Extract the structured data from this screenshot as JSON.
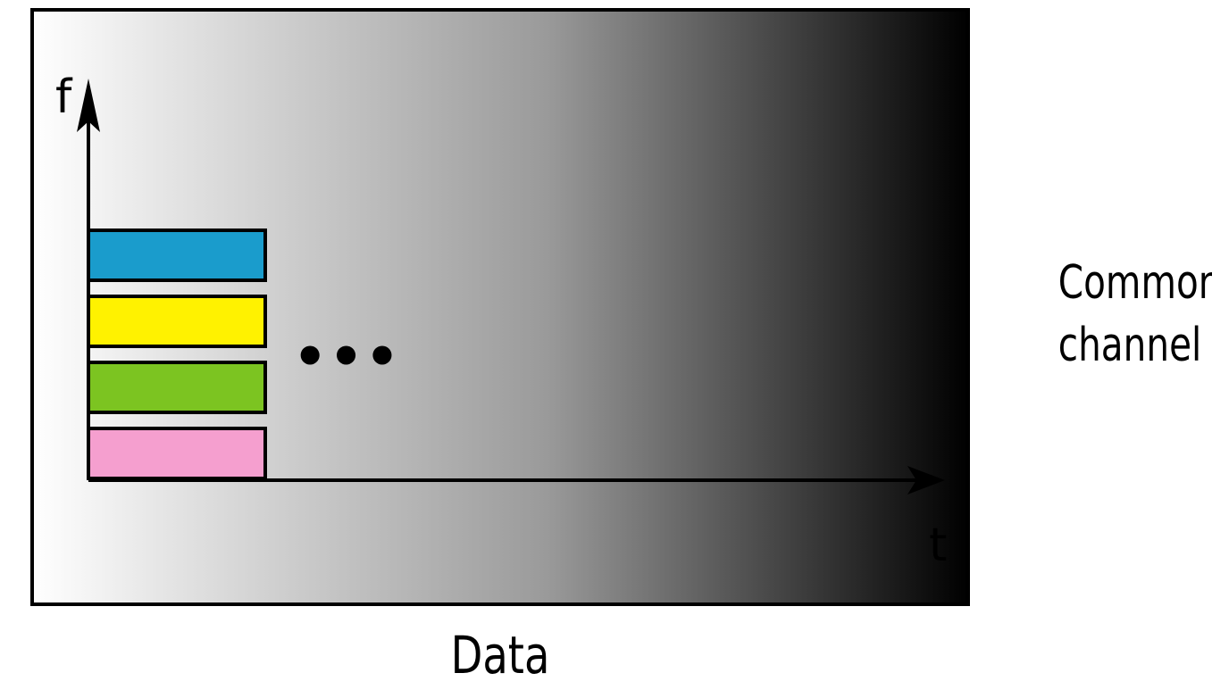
{
  "axes": {
    "y_label": "f",
    "x_label": "t"
  },
  "ellipsis": "•••",
  "channel_label": {
    "line1": "Common",
    "line2": "channel"
  },
  "caption": "Data",
  "bands": [
    {
      "color": "#1a9ccc"
    },
    {
      "color": "#fff200"
    },
    {
      "color": "#7cc421"
    },
    {
      "color": "#f59fcf"
    }
  ],
  "gradient": {
    "start": "#ffffff",
    "mid": "#9a9a9a",
    "end": "#000000"
  }
}
